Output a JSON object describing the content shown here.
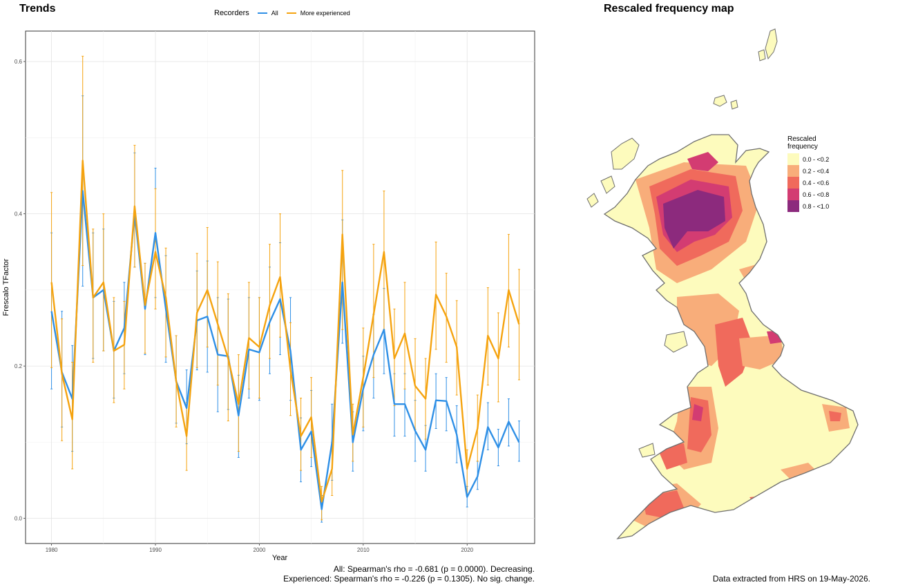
{
  "trends_panel": {
    "title": "Trends",
    "legend": {
      "title": "Recorders",
      "items": [
        {
          "label": "All",
          "color": "#2e8fe6"
        },
        {
          "label": "More experienced",
          "color": "#f5a30f"
        }
      ]
    },
    "caption_line1": "All: Spearman's rho = -0.681 (p = 0.0000). Decreasing.",
    "caption_line2": "Experienced: Spearman's rho = -0.226 (p = 0.1305). No sig. change."
  },
  "chart_data": {
    "type": "line",
    "xlabel": "Year",
    "ylabel": "Frescalo TFactor",
    "xlim": [
      1977.5,
      2026.5
    ],
    "ylim": [
      -0.033,
      0.64
    ],
    "x_ticks": [
      1980,
      1990,
      2000,
      2010,
      2020
    ],
    "y_ticks": [
      0.0,
      0.2,
      0.4,
      0.6
    ],
    "y_tick_labels": [
      "0.0",
      "0.2",
      "0.4",
      "0.6"
    ],
    "grid": true,
    "legend_position": "top",
    "x": [
      1980,
      1981,
      1982,
      1983,
      1984,
      1985,
      1986,
      1987,
      1988,
      1989,
      1990,
      1991,
      1992,
      1993,
      1994,
      1995,
      1996,
      1997,
      1998,
      1999,
      2000,
      2001,
      2002,
      2003,
      2004,
      2005,
      2006,
      2007,
      2008,
      2009,
      2010,
      2011,
      2012,
      2013,
      2014,
      2015,
      2016,
      2017,
      2018,
      2019,
      2020,
      2021,
      2022,
      2023,
      2024,
      2025
    ],
    "series": [
      {
        "name": "All",
        "color": "#2e8fe6",
        "values": [
          0.272,
          0.192,
          0.157,
          0.43,
          0.29,
          0.3,
          0.22,
          0.25,
          0.4,
          0.275,
          0.375,
          0.275,
          0.18,
          0.145,
          0.26,
          0.265,
          0.215,
          0.213,
          0.135,
          0.222,
          0.218,
          0.258,
          0.288,
          0.22,
          0.09,
          0.114,
          0.012,
          0.1,
          0.31,
          0.1,
          0.17,
          0.215,
          0.248,
          0.15,
          0.15,
          0.115,
          0.09,
          0.155,
          0.154,
          0.11,
          0.028,
          0.055,
          0.12,
          0.093,
          0.127,
          0.1
        ],
        "lower": [
          0.17,
          0.12,
          0.088,
          0.305,
          0.21,
          0.22,
          0.158,
          0.19,
          0.33,
          0.215,
          0.29,
          0.205,
          0.125,
          0.098,
          0.195,
          0.192,
          0.14,
          0.143,
          0.08,
          0.158,
          0.155,
          0.19,
          0.215,
          0.155,
          0.048,
          0.068,
          -0.005,
          0.05,
          0.23,
          0.062,
          0.115,
          0.158,
          0.19,
          0.108,
          0.108,
          0.075,
          0.062,
          0.118,
          0.115,
          0.073,
          0.015,
          0.038,
          0.09,
          0.069,
          0.095,
          0.075
        ],
        "upper": [
          0.375,
          0.272,
          0.227,
          0.555,
          0.375,
          0.38,
          0.285,
          0.31,
          0.48,
          0.335,
          0.46,
          0.345,
          0.24,
          0.195,
          0.325,
          0.338,
          0.29,
          0.288,
          0.188,
          0.29,
          0.29,
          0.33,
          0.362,
          0.29,
          0.132,
          0.168,
          0.03,
          0.15,
          0.392,
          0.14,
          0.213,
          0.268,
          0.302,
          0.19,
          0.19,
          0.155,
          0.122,
          0.19,
          0.185,
          0.148,
          0.042,
          0.075,
          0.152,
          0.117,
          0.157,
          0.128
        ]
      },
      {
        "name": "More experienced",
        "color": "#f5a30f",
        "values": [
          0.31,
          0.19,
          0.13,
          0.47,
          0.29,
          0.31,
          0.22,
          0.228,
          0.41,
          0.28,
          0.35,
          0.29,
          0.18,
          0.108,
          0.27,
          0.3,
          0.255,
          0.21,
          0.15,
          0.237,
          0.225,
          0.28,
          0.317,
          0.195,
          0.108,
          0.133,
          0.022,
          0.065,
          0.373,
          0.11,
          0.185,
          0.268,
          0.35,
          0.21,
          0.243,
          0.174,
          0.157,
          0.294,
          0.265,
          0.225,
          0.065,
          0.118,
          0.24,
          0.21,
          0.3,
          0.255
        ],
        "lower": [
          0.198,
          0.102,
          0.065,
          0.332,
          0.205,
          0.22,
          0.152,
          0.17,
          0.33,
          0.217,
          0.275,
          0.212,
          0.12,
          0.063,
          0.198,
          0.225,
          0.175,
          0.128,
          0.088,
          0.17,
          0.158,
          0.21,
          0.238,
          0.135,
          0.063,
          0.08,
          -0.002,
          0.03,
          0.248,
          0.075,
          0.12,
          0.185,
          0.248,
          0.148,
          0.17,
          0.117,
          0.104,
          0.222,
          0.205,
          0.162,
          0.03,
          0.075,
          0.175,
          0.153,
          0.225,
          0.182
        ],
        "upper": [
          0.428,
          0.262,
          0.205,
          0.607,
          0.38,
          0.4,
          0.29,
          0.285,
          0.49,
          0.335,
          0.433,
          0.355,
          0.24,
          0.152,
          0.348,
          0.382,
          0.337,
          0.295,
          0.215,
          0.31,
          0.29,
          0.36,
          0.4,
          0.257,
          0.158,
          0.185,
          0.042,
          0.1,
          0.457,
          0.15,
          0.25,
          0.36,
          0.43,
          0.275,
          0.31,
          0.236,
          0.21,
          0.363,
          0.322,
          0.286,
          0.09,
          0.162,
          0.303,
          0.27,
          0.373,
          0.327
        ]
      }
    ]
  },
  "map_panel": {
    "title": "Rescaled frequency map",
    "legend_title_line1": "Rescaled",
    "legend_title_line2": "frequency",
    "legend_items": [
      {
        "label": "0.0 - <0.2",
        "color": "#fdfbbd"
      },
      {
        "label": "0.2 - <0.4",
        "color": "#f8ad7a"
      },
      {
        "label": "0.4 - <0.6",
        "color": "#f06a5c"
      },
      {
        "label": "0.6 - <0.8",
        "color": "#d33c72"
      },
      {
        "label": "0.8 - <1.0",
        "color": "#8c2a7d"
      }
    ],
    "caption": "Data extracted from HRS on 19-May-2026."
  }
}
